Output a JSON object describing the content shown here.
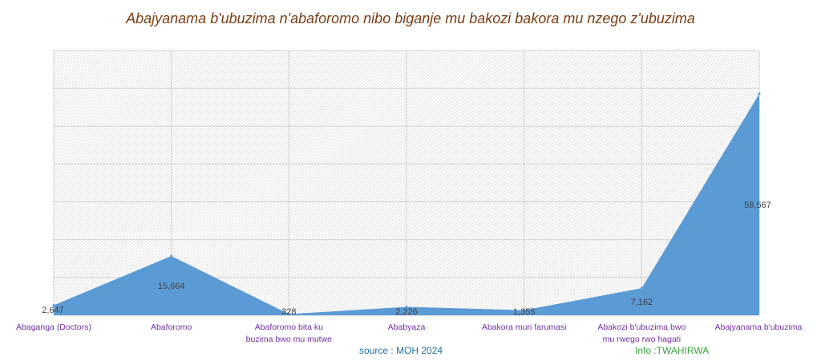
{
  "chart_data": {
    "type": "area",
    "title": "Abajyanama b'ubuzima n'abaforomo nibo biganje mu bakozi bakora  mu nzego z'ubuzima",
    "categories": [
      [
        "Abaganga (Doctors)"
      ],
      [
        "Abaforomo"
      ],
      [
        "Abaforomo bita ku",
        "buzima bwo mu mutwe"
      ],
      [
        "Ababyaza"
      ],
      [
        "Abakora muri farumasi"
      ],
      [
        "Abakozi b'ubuzima bwo",
        "mu rwego rwo hagati"
      ],
      [
        "Abajyanama b'ubuzima"
      ]
    ],
    "values": [
      2647,
      15664,
      328,
      2226,
      1355,
      7162,
      58567
    ],
    "value_labels": [
      "2,647",
      "15,664",
      "328",
      "2,226",
      "1,355",
      "7,162",
      "58,567"
    ],
    "ylim": [
      0,
      70000
    ],
    "grid": true,
    "colors": {
      "area": "#5b9bd5",
      "category_label": "#7030a0",
      "value_label": "#404040"
    }
  },
  "footer": {
    "source": "source : MOH 2024",
    "credit": "Info :TWAHIRWA"
  }
}
